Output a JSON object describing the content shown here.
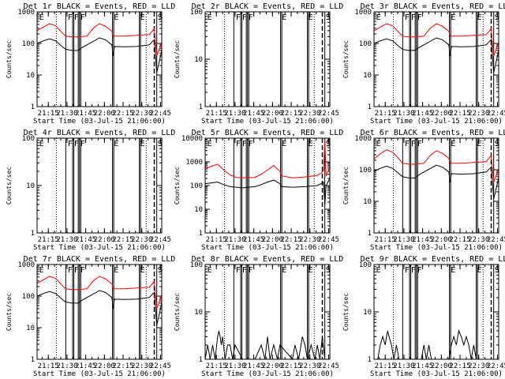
{
  "chart_data": {
    "type": "line",
    "layout": {
      "rows": 3,
      "cols": 3
    },
    "x_ticks": [
      "21:15",
      "21:30",
      "21:45",
      "22:00",
      "22:15",
      "22:30",
      "22:45"
    ],
    "x_tick_minutes": [
      9,
      24,
      39,
      54,
      69,
      84,
      99
    ],
    "xlim_minutes": [
      0,
      100
    ],
    "xlabel": "Start Time (03-Jul-15 21:06:00)",
    "ylabel": "Counts/sec",
    "yscale": "log",
    "series_colors": {
      "events": "#000000",
      "lld": "#ff0000"
    },
    "marker_minutes": {
      "dotted": [
        15.5,
        87.5
      ],
      "solid": [
        23,
        28.5,
        29.5,
        33,
        34,
        35,
        60.5,
        61.5,
        82,
        83,
        96
      ],
      "dashed": [
        94
      ]
    },
    "marker_labels": [
      {
        "text": "E",
        "minute": 1
      },
      {
        "text": "F",
        "minute": 24
      },
      {
        "text": "F",
        "minute": 29
      },
      {
        "text": "F",
        "minute": 34
      },
      {
        "text": "E",
        "minute": 61
      },
      {
        "text": "E",
        "minute": 82
      },
      {
        "text": "S",
        "minute": 96
      }
    ],
    "panels": [
      {
        "title": "Det 1r BLACK = Events, RED = LLD",
        "ylim": [
          1,
          1000
        ],
        "y_ticks": [
          "1",
          "10",
          "100",
          "1000"
        ],
        "lld_x": [
          0,
          5,
          10,
          15,
          20,
          23,
          28,
          33,
          40,
          45,
          50,
          55,
          60,
          61,
          65,
          70,
          80,
          90,
          93,
          94,
          96,
          100
        ],
        "lld_y": [
          250,
          330,
          420,
          360,
          220,
          170,
          160,
          160,
          170,
          300,
          420,
          350,
          240,
          170,
          170,
          170,
          180,
          190,
          260,
          300,
          40,
          110
        ],
        "events_x": [
          0,
          5,
          10,
          15,
          20,
          23,
          28,
          33,
          35,
          40,
          50,
          55,
          60,
          61,
          62,
          70,
          80,
          90,
          93,
          94,
          96,
          100
        ],
        "events_y": [
          100,
          120,
          140,
          120,
          80,
          65,
          60,
          60,
          70,
          90,
          150,
          130,
          90,
          40,
          80,
          78,
          80,
          90,
          120,
          130,
          12,
          60
        ]
      },
      {
        "title": "Det 2r BLACK = Events, RED = LLD",
        "ylim": [
          1,
          100
        ],
        "y_ticks": [
          "1",
          "10",
          "100"
        ],
        "lld_x": [],
        "lld_y": [],
        "events_x": [],
        "events_y": []
      },
      {
        "title": "Det 3r BLACK = Events, RED = LLD",
        "ylim": [
          1,
          1000
        ],
        "y_ticks": [
          "1",
          "10",
          "100",
          "1000"
        ],
        "lld_x": [
          0,
          5,
          10,
          15,
          20,
          23,
          28,
          33,
          40,
          45,
          50,
          55,
          60,
          61,
          65,
          70,
          80,
          90,
          93,
          94,
          96,
          100
        ],
        "lld_y": [
          250,
          330,
          420,
          360,
          220,
          170,
          160,
          160,
          170,
          300,
          420,
          350,
          240,
          170,
          170,
          170,
          180,
          190,
          260,
          300,
          40,
          110
        ],
        "events_x": [
          0,
          5,
          10,
          15,
          20,
          23,
          28,
          33,
          35,
          40,
          50,
          55,
          60,
          61,
          62,
          70,
          80,
          90,
          93,
          94,
          96,
          100
        ],
        "events_y": [
          100,
          120,
          140,
          120,
          80,
          65,
          60,
          60,
          70,
          90,
          150,
          130,
          90,
          40,
          80,
          78,
          80,
          90,
          120,
          130,
          12,
          60
        ]
      },
      {
        "title": "Det 4r BLACK = Events, RED = LLD",
        "ylim": [
          1,
          100
        ],
        "y_ticks": [
          "1",
          "10",
          "100"
        ],
        "lld_x": [],
        "lld_y": [],
        "events_x": [],
        "events_y": []
      },
      {
        "title": "Det 5r BLACK = Events, RED = LLD",
        "ylim": [
          1,
          10000
        ],
        "y_ticks": [
          "1",
          "10",
          "100",
          "1000",
          "10000"
        ],
        "lld_x": [
          0,
          5,
          10,
          15,
          20,
          25,
          30,
          40,
          45,
          50,
          55,
          60,
          61,
          70,
          80,
          90,
          93,
          95,
          96,
          97,
          100
        ],
        "lld_y": [
          500,
          650,
          800,
          450,
          280,
          220,
          210,
          220,
          300,
          450,
          700,
          400,
          260,
          210,
          230,
          270,
          330,
          430,
          9000,
          250,
          600
        ],
        "events_x": [
          0,
          5,
          10,
          15,
          20,
          25,
          30,
          40,
          45,
          50,
          55,
          60,
          61,
          70,
          80,
          90,
          93,
          95,
          96,
          97,
          100
        ],
        "events_y": [
          120,
          130,
          140,
          110,
          90,
          85,
          80,
          90,
          110,
          140,
          170,
          120,
          90,
          85,
          90,
          100,
          120,
          140,
          15,
          100,
          200
        ]
      },
      {
        "title": "Det 6r BLACK = Events, RED = LLD",
        "ylim": [
          1,
          1000
        ],
        "y_ticks": [
          "1",
          "10",
          "100",
          "1000"
        ],
        "lld_x": [
          0,
          5,
          10,
          15,
          20,
          23,
          28,
          33,
          40,
          45,
          50,
          55,
          60,
          61,
          65,
          70,
          80,
          90,
          93,
          94,
          96,
          100
        ],
        "lld_y": [
          220,
          320,
          430,
          360,
          220,
          160,
          150,
          150,
          160,
          280,
          400,
          330,
          230,
          160,
          160,
          160,
          170,
          180,
          250,
          290,
          40,
          110
        ],
        "events_x": [
          0,
          5,
          10,
          15,
          20,
          23,
          28,
          33,
          35,
          40,
          50,
          55,
          60,
          61,
          62,
          70,
          80,
          90,
          93,
          94,
          96,
          100
        ],
        "events_y": [
          90,
          110,
          130,
          110,
          75,
          60,
          55,
          55,
          65,
          85,
          140,
          120,
          85,
          40,
          75,
          73,
          75,
          85,
          110,
          120,
          12,
          55
        ]
      },
      {
        "title": "Det 7r BLACK = Events, RED = LLD",
        "ylim": [
          1,
          1000
        ],
        "y_ticks": [
          "1",
          "10",
          "100",
          "1000"
        ],
        "lld_x": [
          0,
          5,
          10,
          15,
          20,
          23,
          28,
          33,
          40,
          45,
          50,
          55,
          60,
          61,
          65,
          70,
          80,
          90,
          93,
          94,
          96,
          100
        ],
        "lld_y": [
          250,
          330,
          420,
          360,
          220,
          170,
          160,
          160,
          170,
          300,
          420,
          350,
          240,
          170,
          170,
          170,
          180,
          190,
          260,
          300,
          40,
          110
        ],
        "events_x": [
          0,
          5,
          10,
          15,
          20,
          23,
          28,
          33,
          35,
          40,
          50,
          55,
          60,
          61,
          62,
          70,
          80,
          90,
          93,
          94,
          96,
          100
        ],
        "events_y": [
          100,
          120,
          140,
          120,
          80,
          65,
          60,
          60,
          70,
          90,
          150,
          130,
          90,
          40,
          80,
          78,
          80,
          90,
          120,
          130,
          12,
          60
        ]
      },
      {
        "title": "Det 8r BLACK = Events, RED = LLD",
        "ylim": [
          1,
          100
        ],
        "y_ticks": [
          "1",
          "10",
          "100"
        ],
        "lld_x": [],
        "lld_y": [],
        "events_x": [
          0,
          2,
          4,
          6,
          8,
          10,
          11,
          12,
          13,
          14,
          16,
          18,
          20,
          22,
          24,
          30,
          40,
          45,
          48,
          50,
          52,
          55,
          58,
          60,
          70,
          72,
          75,
          78,
          80,
          82,
          85,
          88,
          90,
          92,
          94,
          96,
          100
        ],
        "events_y": [
          1,
          2,
          1,
          2,
          1,
          3,
          4,
          3,
          2,
          3,
          1,
          2,
          2,
          1,
          2,
          1,
          1,
          2,
          1,
          3,
          1,
          2,
          1,
          2,
          1,
          2,
          1,
          3,
          2,
          1,
          2,
          1,
          2,
          1,
          3,
          1,
          1
        ]
      },
      {
        "title": "Det 9r BLACK = Events, RED = LLD",
        "ylim": [
          1,
          100
        ],
        "y_ticks": [
          "1",
          "10",
          "100"
        ],
        "lld_x": [],
        "lld_y": [],
        "events_x": [
          0,
          3,
          5,
          7,
          9,
          10,
          11,
          12,
          14,
          16,
          18,
          20,
          22,
          30,
          38,
          40,
          42,
          44,
          46,
          50,
          60,
          62,
          64,
          66,
          68,
          70,
          72,
          74,
          76,
          78,
          80,
          82,
          84,
          90,
          100
        ],
        "events_y": [
          1,
          1,
          2,
          3,
          2,
          3,
          4,
          3,
          2,
          1,
          2,
          1,
          1,
          1,
          1,
          2,
          1,
          2,
          1,
          1,
          1,
          2,
          3,
          2,
          4,
          3,
          2,
          3,
          2,
          1,
          2,
          1,
          1,
          1,
          1
        ]
      }
    ]
  }
}
